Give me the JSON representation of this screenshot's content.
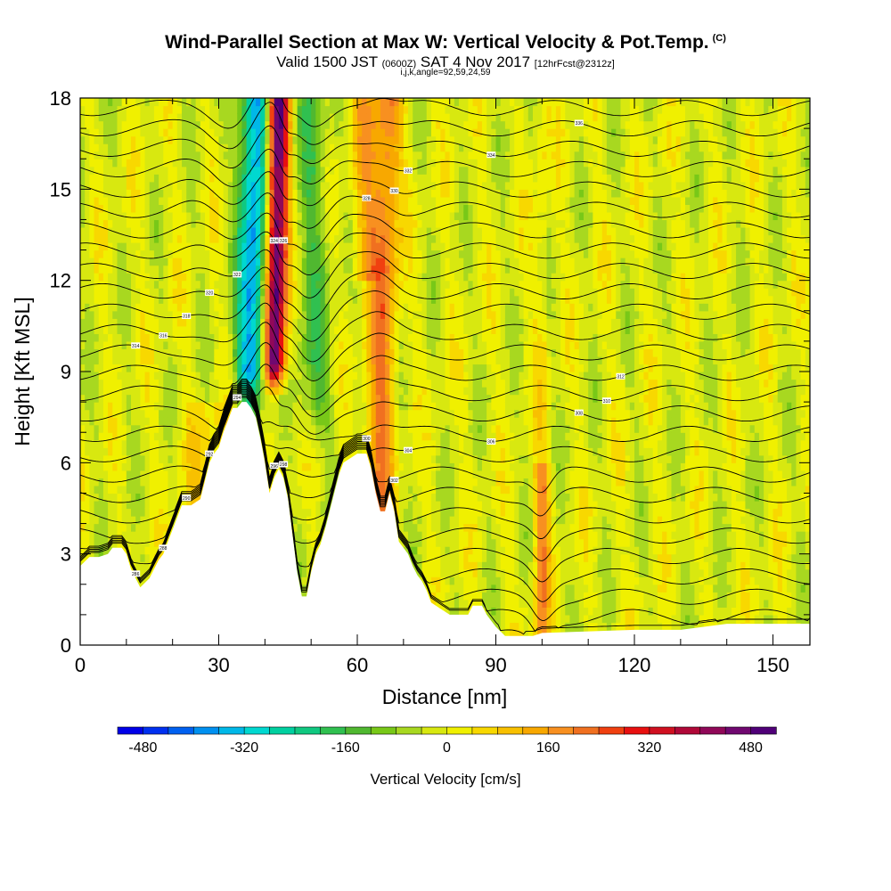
{
  "title": "Wind-Parallel Section at Max W: Vertical Velocity & Pot.Temp.",
  "title_mark": "(C)",
  "subtitle_valid": "Valid 1500 JST",
  "subtitle_utc": "(0600Z)",
  "subtitle_date": "SAT 4 Nov 2017",
  "subtitle_fcst": "[12hrFcst@2312z]",
  "subtitle_indices": "i,j,k,angle=92,59,24,59",
  "chart_data": {
    "type": "heatmap",
    "xlabel": "Distance [nm]",
    "ylabel": "Height [Kft MSL]",
    "xlim": [
      0,
      158
    ],
    "ylim": [
      0,
      18
    ],
    "x_ticks": [
      "0",
      "30",
      "60",
      "90",
      "120",
      "150"
    ],
    "y_ticks": [
      "0",
      "3",
      "6",
      "9",
      "12",
      "15",
      "18"
    ],
    "colorbar": {
      "title": "Vertical Velocity [cm/s]",
      "range": [
        -520,
        520
      ],
      "step": 40,
      "tick_labels": [
        "-480",
        "-320",
        "-160",
        "0",
        "160",
        "320",
        "480"
      ],
      "colors": [
        "#0000e8",
        "#0030f0",
        "#0060f0",
        "#0090f0",
        "#00b8e8",
        "#00d8d0",
        "#00d0a0",
        "#10c880",
        "#30c050",
        "#50b830",
        "#78c818",
        "#a8d820",
        "#d8e810",
        "#f0f000",
        "#f8d800",
        "#f8c000",
        "#f8a800",
        "#f89020",
        "#f07020",
        "#f04010",
        "#e81010",
        "#d01020",
        "#b00838",
        "#900858",
        "#700870",
        "#500078"
      ]
    },
    "updraft_cores": [
      {
        "x": 43,
        "peak_cm_s": 520
      },
      {
        "x": 67,
        "peak_cm_s": 200
      },
      {
        "x": 100,
        "peak_cm_s": 200
      }
    ],
    "downdraft_cores": [
      {
        "x": 38,
        "peak_cm_s": -360
      },
      {
        "x": 50,
        "peak_cm_s": -120
      }
    ],
    "terrain_kft": [
      [
        0,
        2.6
      ],
      [
        2,
        2.9
      ],
      [
        4,
        2.9
      ],
      [
        6,
        3.0
      ],
      [
        7,
        3.2
      ],
      [
        9,
        3.2
      ],
      [
        10,
        3.0
      ],
      [
        11,
        2.5
      ],
      [
        12,
        2.2
      ],
      [
        13,
        1.9
      ],
      [
        15,
        2.2
      ],
      [
        16,
        2.5
      ],
      [
        17,
        2.8
      ],
      [
        18,
        3.0
      ],
      [
        19,
        3.4
      ],
      [
        20,
        3.8
      ],
      [
        21,
        4.2
      ],
      [
        22,
        4.6
      ],
      [
        24,
        4.6
      ],
      [
        26,
        4.8
      ],
      [
        27,
        5.4
      ],
      [
        28,
        6.0
      ],
      [
        29,
        6.3
      ],
      [
        30,
        6.5
      ],
      [
        31,
        7.0
      ],
      [
        32,
        7.4
      ],
      [
        33,
        7.8
      ],
      [
        34,
        7.8
      ],
      [
        35,
        8.0
      ],
      [
        36,
        8.0
      ],
      [
        37,
        7.8
      ],
      [
        38,
        7.5
      ],
      [
        39,
        6.8
      ],
      [
        40,
        6.0
      ],
      [
        41,
        5.0
      ],
      [
        42,
        5.5
      ],
      [
        43,
        5.8
      ],
      [
        44,
        5.5
      ],
      [
        45,
        4.8
      ],
      [
        46,
        3.6
      ],
      [
        47,
        2.4
      ],
      [
        48,
        1.6
      ],
      [
        49,
        1.6
      ],
      [
        50,
        2.4
      ],
      [
        51,
        3.0
      ],
      [
        52,
        3.3
      ],
      [
        53,
        3.8
      ],
      [
        54,
        4.4
      ],
      [
        55,
        5.0
      ],
      [
        56,
        5.6
      ],
      [
        57,
        6.0
      ],
      [
        60,
        6.3
      ],
      [
        62,
        6.3
      ],
      [
        63,
        5.8
      ],
      [
        64,
        5.0
      ],
      [
        65,
        4.4
      ],
      [
        66,
        4.4
      ],
      [
        67,
        5.0
      ],
      [
        68,
        4.4
      ],
      [
        69,
        3.4
      ],
      [
        70,
        3.2
      ],
      [
        71,
        3.0
      ],
      [
        72,
        2.6
      ],
      [
        73,
        2.3
      ],
      [
        74,
        2.1
      ],
      [
        75,
        1.8
      ],
      [
        76,
        1.4
      ],
      [
        78,
        1.2
      ],
      [
        80,
        1.0
      ],
      [
        84,
        1.0
      ],
      [
        85,
        1.3
      ],
      [
        87,
        1.3
      ],
      [
        88,
        1.0
      ],
      [
        89,
        0.8
      ],
      [
        90,
        0.6
      ],
      [
        92,
        0.3
      ],
      [
        98,
        0.3
      ],
      [
        100,
        0.4
      ],
      [
        120,
        0.5
      ],
      [
        130,
        0.5
      ],
      [
        140,
        0.7
      ],
      [
        158,
        0.7
      ]
    ],
    "contour_labels": [
      "286",
      "288",
      "290",
      "292",
      "294",
      "296",
      "298",
      "300",
      "302",
      "304",
      "306",
      "308",
      "310",
      "312",
      "314",
      "316",
      "318",
      "320",
      "322",
      "324",
      "326",
      "328",
      "330",
      "332",
      "334",
      "336"
    ]
  }
}
